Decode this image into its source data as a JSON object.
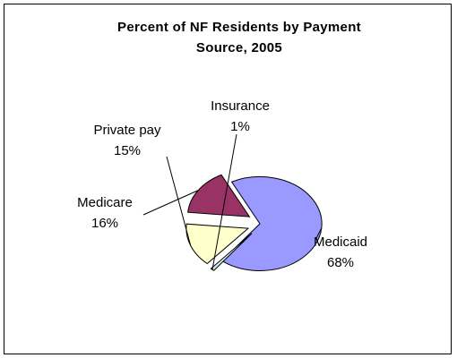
{
  "chart_data": {
    "type": "pie",
    "title_lines": [
      "Percent of NF Residents by Payment",
      "Source, 2005"
    ],
    "slices": [
      {
        "label": "Medicaid",
        "value": 68,
        "value_text": "68%",
        "color": "#9999ff",
        "exploded": false
      },
      {
        "label": "Insurance",
        "value": 1,
        "value_text": "1%",
        "color": "#cdeaea",
        "exploded": true
      },
      {
        "label": "Private pay",
        "value": 15,
        "value_text": "15%",
        "color": "#ffffcc",
        "exploded": true
      },
      {
        "label": "Medicare",
        "value": 16,
        "value_text": "16%",
        "color": "#993366",
        "exploded": true
      }
    ],
    "grid": false,
    "legend": "none"
  }
}
